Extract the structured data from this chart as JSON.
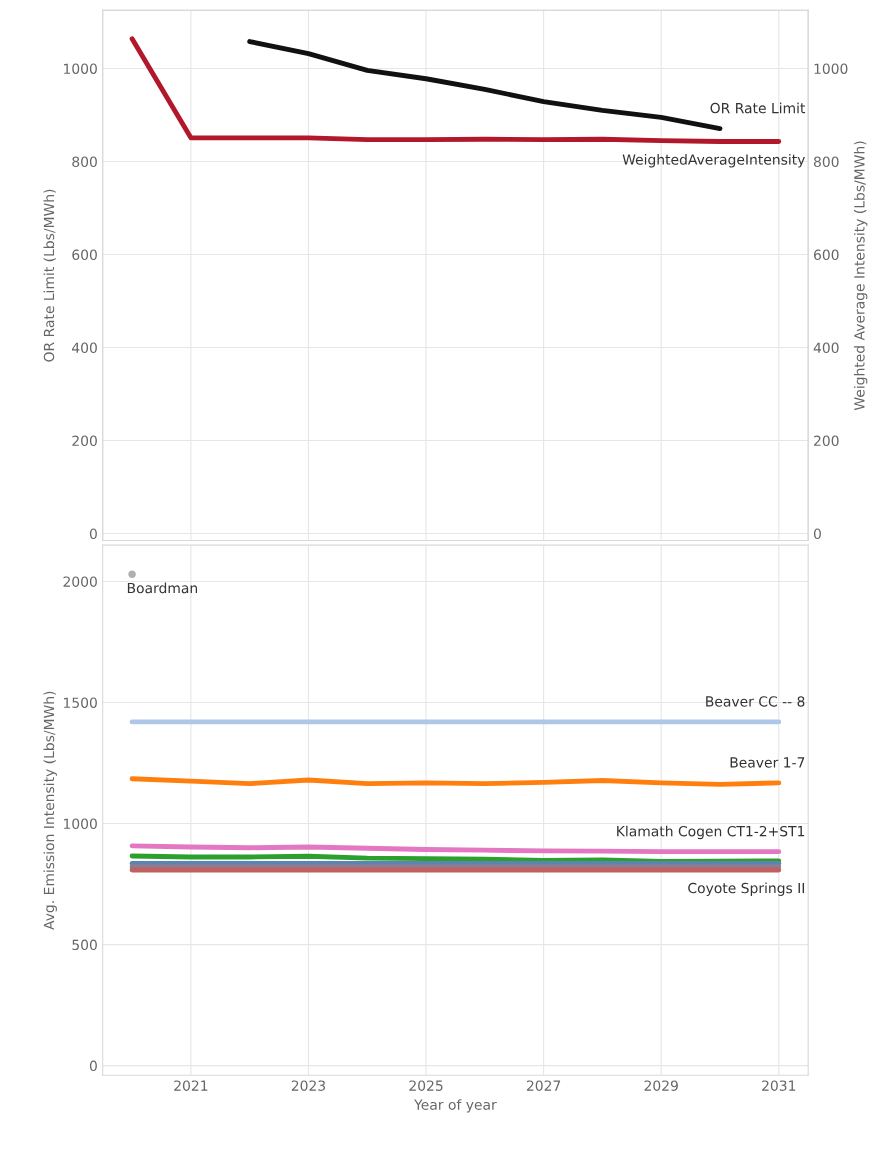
{
  "chart_data": [
    {
      "type": "line",
      "ylabel": "OR Rate Limit (Lbs/MWh)",
      "y2label": "Weighted Average Intensity (Lbs/MWh)",
      "xlim": [
        2019.5,
        2031.5
      ],
      "xticks": [
        2021,
        2023,
        2025,
        2027,
        2029,
        2031
      ],
      "ylim": [
        -15,
        1125
      ],
      "yticks": [
        0,
        200,
        400,
        600,
        800,
        1000
      ],
      "y2lim": [
        -15,
        1125
      ],
      "y2ticks": [
        0,
        200,
        400,
        600,
        800,
        1000
      ],
      "grid": true,
      "tick_labels": "y",
      "marker": "none",
      "line_style": "solid",
      "series": [
        {
          "name": "OR Rate Limit",
          "color": "#111111",
          "x": [
            2022,
            2023,
            2024,
            2025,
            2026,
            2027,
            2028,
            2029,
            2030
          ],
          "values": [
            1058,
            1032,
            996,
            978,
            955,
            929,
            910,
            895,
            871
          ]
        },
        {
          "name": "WeightedAverageIntensity",
          "color": "#b2182b",
          "x": [
            2020,
            2021,
            2022,
            2023,
            2024,
            2025,
            2026,
            2027,
            2028,
            2029,
            2030,
            2031
          ],
          "values": [
            1064,
            851,
            851,
            851,
            847,
            847,
            848,
            847,
            848,
            845,
            843,
            843
          ]
        }
      ]
    },
    {
      "type": "line",
      "xlabel": "Year of year",
      "ylabel": "Avg. Emission Intensity (Lbs/MWh)",
      "xlim": [
        2019.5,
        2031.5
      ],
      "xticks": [
        2021,
        2023,
        2025,
        2027,
        2029,
        2031
      ],
      "ylim": [
        -40,
        2150
      ],
      "yticks": [
        0,
        500,
        1000,
        1500,
        2000
      ],
      "grid": true,
      "marker": "none",
      "line_style": "solid",
      "x": [
        2020,
        2021,
        2022,
        2023,
        2024,
        2025,
        2026,
        2027,
        2028,
        2029,
        2030,
        2031
      ],
      "series": [
        {
          "name": "Boardman",
          "type": "scatter",
          "color": "#b0b0b0",
          "x": [
            2020
          ],
          "values": [
            2030
          ]
        },
        {
          "name": "Beaver CC -- 8",
          "color": "#aec7e8",
          "values": [
            1420,
            1420,
            1420,
            1420,
            1420,
            1420,
            1420,
            1420,
            1420,
            1420,
            1420,
            1420
          ]
        },
        {
          "name": "Beaver 1-7",
          "color": "#ff7f0e",
          "values": [
            1185,
            1175,
            1165,
            1180,
            1165,
            1168,
            1165,
            1170,
            1178,
            1168,
            1162,
            1168
          ]
        },
        {
          "name": "Klamath Cogen CT1-2+ST1",
          "color": "#e377c2",
          "values": [
            908,
            903,
            900,
            903,
            898,
            893,
            890,
            887,
            886,
            884,
            884,
            884
          ]
        },
        {
          "color": "#2ca02c",
          "values": [
            866,
            862,
            862,
            865,
            857,
            855,
            853,
            848,
            850,
            844,
            845,
            846
          ]
        },
        {
          "color": "#5b84b1",
          "values": [
            835,
            835,
            835,
            835,
            835,
            835,
            835,
            835,
            835,
            835,
            835,
            835
          ]
        },
        {
          "color": "#8c7c94",
          "values": [
            822,
            822,
            822,
            822,
            822,
            822,
            822,
            822,
            822,
            822,
            822,
            822
          ]
        },
        {
          "name": "Coyote Springs II",
          "color": "#c06060",
          "values": [
            808,
            808,
            808,
            808,
            808,
            808,
            808,
            808,
            808,
            808,
            808,
            808
          ]
        }
      ]
    }
  ]
}
